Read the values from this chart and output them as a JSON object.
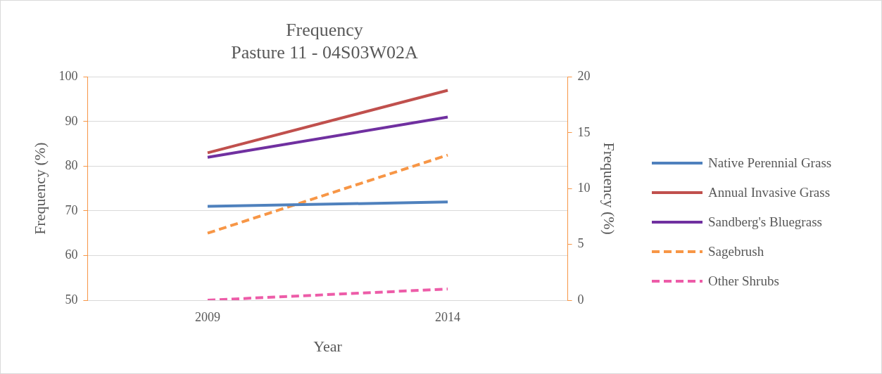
{
  "chart_data": {
    "type": "line",
    "title": "Frequency",
    "subtitle": "Pasture 11 - 04S03W02A",
    "xlabel": "Year",
    "ylabel": "Frequency (%)",
    "y2label": "Frequency (%)",
    "categories": [
      "2009",
      "2014"
    ],
    "series": [
      {
        "name": "Native Perennial Grass",
        "color": "#4f81bd",
        "values": [
          71,
          72
        ],
        "line_style": "solid"
      },
      {
        "name": "Annual Invasive Grass",
        "color": "#c0504d",
        "values": [
          83,
          97
        ],
        "line_style": "solid"
      },
      {
        "name": "Sandberg's Bluegrass",
        "color": "#7030a0",
        "values": [
          82,
          91
        ],
        "line_style": "solid"
      },
      {
        "name": "Sagebrush",
        "color": "#f79646",
        "values": [
          6,
          13
        ],
        "line_style": "dashed",
        "axis": "y2"
      },
      {
        "name": "Other Shrubs",
        "color": "#ed5ca8",
        "values": [
          0,
          1
        ],
        "line_style": "dashed",
        "axis": "y2"
      }
    ],
    "ylim": [
      50,
      100
    ],
    "yticks": [
      50,
      60,
      70,
      80,
      90,
      100
    ],
    "y2lim": [
      0,
      20
    ],
    "y2ticks": [
      0,
      5,
      10,
      15,
      20
    ],
    "grid": "y",
    "legend": "right",
    "marker": "none"
  }
}
